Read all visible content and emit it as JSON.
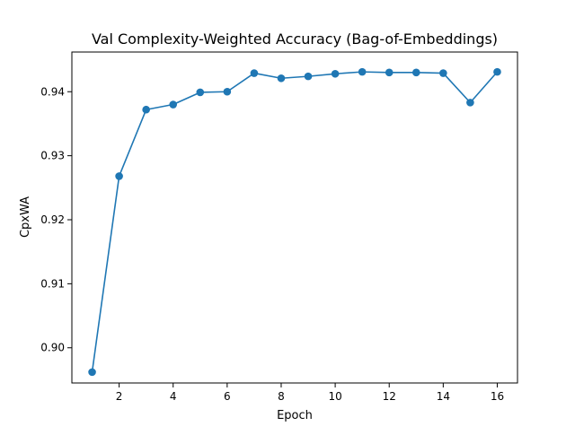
{
  "chart_data": {
    "type": "line",
    "title": "Val Complexity-Weighted Accuracy (Bag-of-Embeddings)",
    "xlabel": "Epoch",
    "ylabel": "CpxWA",
    "x": [
      1,
      2,
      3,
      4,
      5,
      6,
      7,
      8,
      9,
      10,
      11,
      12,
      13,
      14,
      15,
      16
    ],
    "series": [
      {
        "values": [
          0.8962,
          0.9268,
          0.9372,
          0.938,
          0.9399,
          0.94,
          0.9429,
          0.9421,
          0.9424,
          0.9428,
          0.9431,
          0.943,
          0.943,
          0.9429,
          0.9383,
          0.9431
        ],
        "color": "#1f77b4",
        "marker": "circle"
      }
    ],
    "xlim": [
      0.25,
      16.75
    ],
    "ylim": [
      0.8945,
      0.9462
    ],
    "xticks": [
      2,
      4,
      6,
      8,
      10,
      12,
      14,
      16
    ],
    "xtick_labels": [
      "2",
      "4",
      "6",
      "8",
      "10",
      "12",
      "14",
      "16"
    ],
    "yticks": [
      0.9,
      0.91,
      0.92,
      0.93,
      0.94
    ],
    "ytick_labels": [
      "0.90",
      "0.91",
      "0.92",
      "0.93",
      "0.94"
    ],
    "grid": false,
    "legend": "none"
  }
}
